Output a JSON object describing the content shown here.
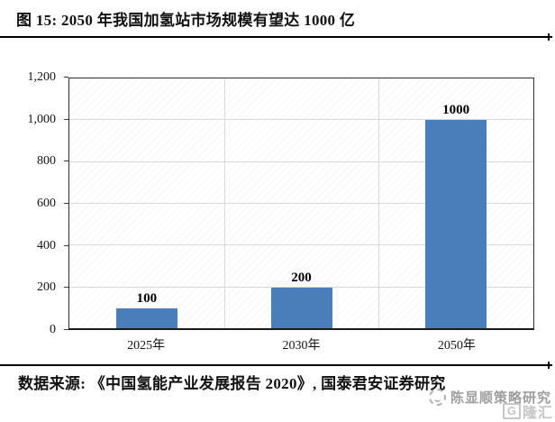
{
  "header": {
    "title": "图 15:  2050 年我国加氢站市场规模有望达 1000 亿"
  },
  "footer": {
    "source": "数据来源: 《中国氢能产业发展报告 2020》, 国泰君安证券研究"
  },
  "watermark": {
    "account": "陈显顺策略研究",
    "logo_g": "G",
    "logo_text": "隆汇"
  },
  "chart_data": {
    "type": "bar",
    "title": "2050 年我国加氢站市场规模有望达 1000 亿",
    "categories": [
      "2025年",
      "2030年",
      "2050年"
    ],
    "values": [
      100,
      200,
      1000
    ],
    "data_labels": [
      "100",
      "200",
      "1000"
    ],
    "xlabel": "",
    "ylabel": "",
    "ylim": [
      0,
      1200
    ],
    "ytick_step": 200,
    "ytick_labels": [
      "0",
      "200",
      "400",
      "600",
      "800",
      "1,000",
      "1,200"
    ],
    "bar_color": "#4A7EBB",
    "grid": {
      "horizontal": true,
      "vertical_category_boundaries": true
    },
    "legend": "none",
    "plot_border": true
  }
}
